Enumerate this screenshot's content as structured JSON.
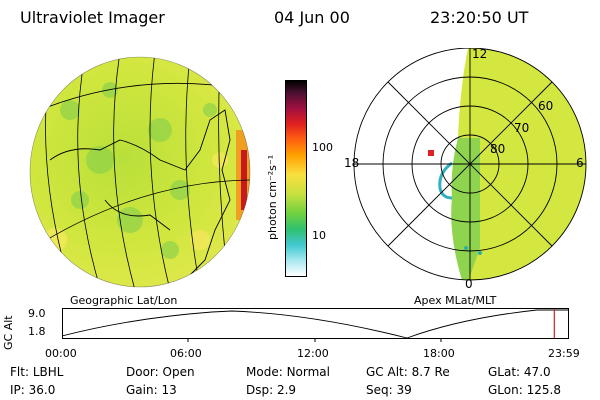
{
  "header": {
    "title": "Ultraviolet Imager",
    "date": "04 Jun 00",
    "time": "23:20:50 UT"
  },
  "colorbar": {
    "unit_label": "photon cm⁻²s⁻¹",
    "tick_100": "100",
    "tick_10": "10"
  },
  "left_panel": {
    "caption": "Geographic Lat/Lon"
  },
  "right_panel": {
    "caption": "Apex MLat/MLT",
    "mlt_labels": {
      "top": "12",
      "left": "18",
      "right": "6",
      "bottom": "0"
    },
    "mlat_labels": [
      "60",
      "70",
      "80"
    ]
  },
  "altitude_plot": {
    "ylabel": "GC Alt",
    "ytick_high": "9.0",
    "ytick_low": "1.8",
    "xticks": [
      "00:00",
      "06:00",
      "12:00",
      "18:00",
      "23:59"
    ],
    "current_fraction": 0.973
  },
  "info": {
    "filter_label": "Flt:",
    "filter": "LBHL",
    "door_label": "Door:",
    "door": "Open",
    "mode_label": "Mode:",
    "mode": "Normal",
    "gcalt_label": "GC Alt:",
    "gcalt": "8.7 Re",
    "glat_label": "GLat:",
    "glat": "47.0",
    "ip_label": "IP:",
    "ip": "36.0",
    "gain_label": "Gain:",
    "gain": "13",
    "dsp_label": "Dsp:",
    "dsp": "2.9",
    "seq_label": "Seq:",
    "seq": "39",
    "glon_label": "GLon:",
    "glon": "125.8"
  },
  "colors": {
    "map_base": "#d8e63a",
    "aurora_core": "#c81a1a",
    "colorbar_top": "#000000"
  }
}
